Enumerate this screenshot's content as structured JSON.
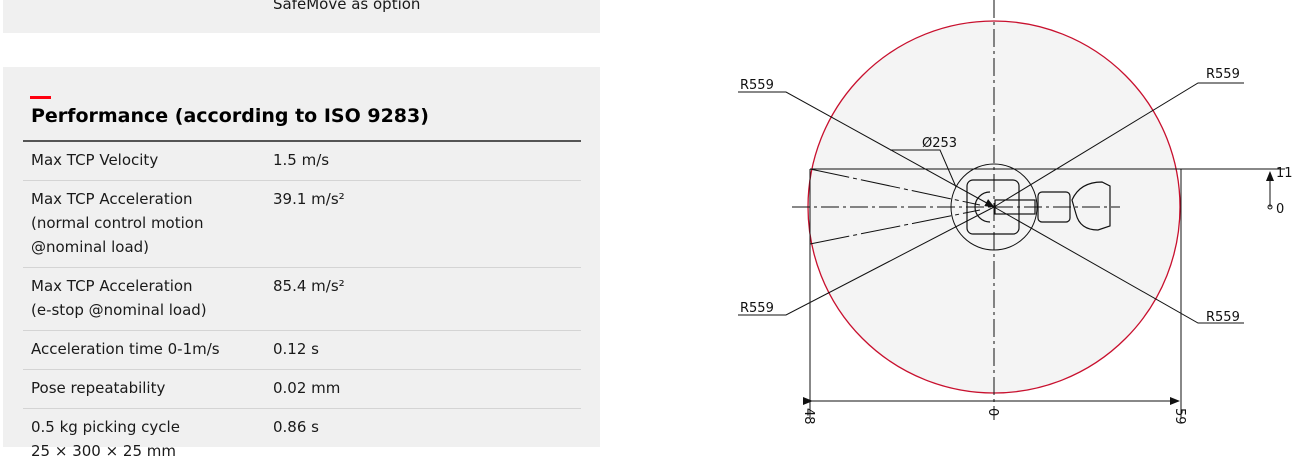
{
  "top_panel": {
    "text": "SafeMove as option"
  },
  "performance": {
    "title": "Performance (according to ISO 9283)",
    "accent_color": "#ff000f",
    "rows": [
      {
        "label": "Max TCP Velocity",
        "value": "1.5 m/s"
      },
      {
        "label": "Max TCP Acceleration\n(normal control motion\n@nominal load)",
        "value": "39.1 m/s²"
      },
      {
        "label": "Max TCP Acceleration\n(e-stop @nominal load)",
        "value": "85.4 m/s²"
      },
      {
        "label": "Acceleration time 0-1m/s",
        "value": "0.12 s"
      },
      {
        "label": "Pose repeatability",
        "value": "0.02 mm"
      },
      {
        "label": "0.5 kg picking cycle\n25 × 300 × 25 mm",
        "value": "0.86 s"
      }
    ]
  },
  "drawing": {
    "envelope_color": "#c8102e",
    "radius_labels": [
      "R559",
      "R559",
      "R559",
      "R559"
    ],
    "diameter_label": "Ø253",
    "dim_right_top": "11",
    "dim_right_zero": "0",
    "dim_bottom_left": "48",
    "dim_bottom_center": "0",
    "dim_bottom_right": "59"
  }
}
